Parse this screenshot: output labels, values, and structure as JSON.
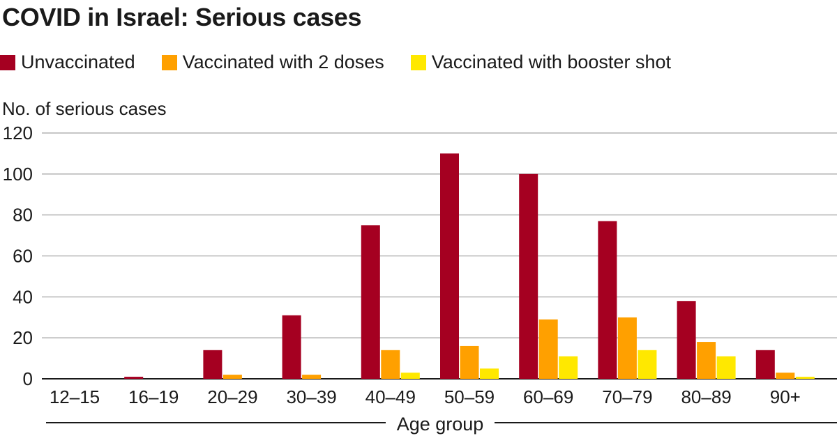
{
  "header": {
    "title": "COVID in Israel: Serious cases"
  },
  "legend": [
    {
      "label": "Unvaccinated",
      "color": "#a50021"
    },
    {
      "label": "Vaccinated with 2 doses",
      "color": "#ffa000"
    },
    {
      "label": "Vaccinated with booster shot",
      "color": "#ffe800"
    }
  ],
  "chart_data": {
    "type": "bar",
    "title": "COVID in Israel: Serious cases",
    "ylabel": "No. of serious cases",
    "xlabel": "Age group",
    "ylim": [
      0,
      120
    ],
    "yticks": [
      0,
      20,
      40,
      60,
      80,
      100,
      120
    ],
    "grid": true,
    "legend_position": "top",
    "categories": [
      "12–15",
      "16–19",
      "20–29",
      "30–39",
      "40–49",
      "50–59",
      "60–69",
      "70–79",
      "80–89",
      "90+"
    ],
    "series": [
      {
        "name": "Unvaccinated",
        "color": "#a50021",
        "values": [
          0,
          1,
          14,
          31,
          75,
          110,
          100,
          77,
          38,
          14
        ]
      },
      {
        "name": "Vaccinated with 2 doses",
        "color": "#ffa000",
        "values": [
          0,
          0,
          2,
          2,
          14,
          16,
          29,
          30,
          18,
          3
        ]
      },
      {
        "name": "Vaccinated with booster shot",
        "color": "#ffe800",
        "values": [
          0,
          0,
          0,
          0,
          3,
          5,
          11,
          14,
          11,
          1
        ]
      }
    ]
  }
}
